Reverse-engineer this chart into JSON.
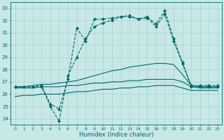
{
  "xlabel": "Humidex (Indice chaleur)",
  "bg_color": "#c8e8e8",
  "grid_color": "#a8d0d0",
  "line_color": "#006868",
  "xlim": [
    -0.5,
    23.5
  ],
  "ylim": [
    23.5,
    33.5
  ],
  "yticks": [
    24,
    25,
    26,
    27,
    28,
    29,
    30,
    31,
    32,
    33
  ],
  "xticks": [
    0,
    1,
    2,
    3,
    4,
    5,
    6,
    7,
    8,
    9,
    10,
    11,
    12,
    13,
    14,
    15,
    16,
    17,
    18,
    19,
    20,
    21,
    22,
    23
  ],
  "dash_line1_x": [
    0,
    1,
    2,
    3,
    4,
    5,
    6,
    7,
    8,
    9,
    10,
    11,
    12,
    13,
    14,
    15,
    16,
    17,
    18,
    19,
    20,
    21,
    22,
    23
  ],
  "dash_line1_y": [
    26.6,
    26.6,
    26.6,
    26.6,
    25.0,
    23.8,
    27.5,
    29.0,
    30.5,
    31.5,
    31.8,
    32.0,
    32.3,
    32.3,
    32.1,
    32.2,
    31.5,
    32.5,
    30.3,
    28.5,
    26.6,
    26.6,
    26.6,
    26.6
  ],
  "dash_line2_x": [
    0,
    1,
    2,
    3,
    4,
    5,
    6,
    7,
    8,
    9,
    10,
    11,
    12,
    13,
    14,
    15,
    16,
    17,
    18,
    19,
    20,
    21,
    22,
    23
  ],
  "dash_line2_y": [
    26.6,
    26.6,
    26.6,
    26.7,
    25.2,
    24.8,
    27.2,
    31.4,
    30.3,
    32.1,
    32.1,
    32.2,
    32.3,
    32.4,
    32.1,
    32.3,
    31.7,
    32.8,
    30.5,
    28.6,
    26.7,
    26.7,
    26.7,
    26.7
  ],
  "smooth1_x": [
    0,
    1,
    2,
    3,
    4,
    5,
    6,
    7,
    8,
    9,
    10,
    11,
    12,
    13,
    14,
    15,
    16,
    17,
    18,
    19,
    20,
    21,
    22,
    23
  ],
  "smooth1_y": [
    26.6,
    26.6,
    26.7,
    26.8,
    26.8,
    26.9,
    27.0,
    27.1,
    27.3,
    27.5,
    27.7,
    27.9,
    28.0,
    28.2,
    28.3,
    28.4,
    28.5,
    28.5,
    28.4,
    27.6,
    26.7,
    26.6,
    26.6,
    26.6
  ],
  "smooth2_x": [
    0,
    1,
    2,
    3,
    4,
    5,
    6,
    7,
    8,
    9,
    10,
    11,
    12,
    13,
    14,
    15,
    16,
    17,
    18,
    19,
    20,
    21,
    22,
    23
  ],
  "smooth2_y": [
    26.5,
    26.5,
    26.5,
    26.6,
    26.6,
    26.6,
    26.7,
    26.7,
    26.8,
    26.9,
    26.9,
    27.0,
    27.0,
    27.1,
    27.1,
    27.2,
    27.2,
    27.2,
    27.2,
    27.0,
    26.6,
    26.5,
    26.5,
    26.5
  ],
  "smooth3_x": [
    0,
    1,
    2,
    3,
    4,
    5,
    6,
    7,
    8,
    9,
    10,
    11,
    12,
    13,
    14,
    15,
    16,
    17,
    18,
    19,
    20,
    21,
    22,
    23
  ],
  "smooth3_y": [
    25.8,
    25.9,
    25.9,
    26.0,
    26.0,
    26.0,
    26.1,
    26.2,
    26.2,
    26.3,
    26.4,
    26.4,
    26.5,
    26.5,
    26.6,
    26.6,
    26.7,
    26.7,
    26.7,
    26.5,
    26.3,
    26.3,
    26.3,
    26.3
  ]
}
